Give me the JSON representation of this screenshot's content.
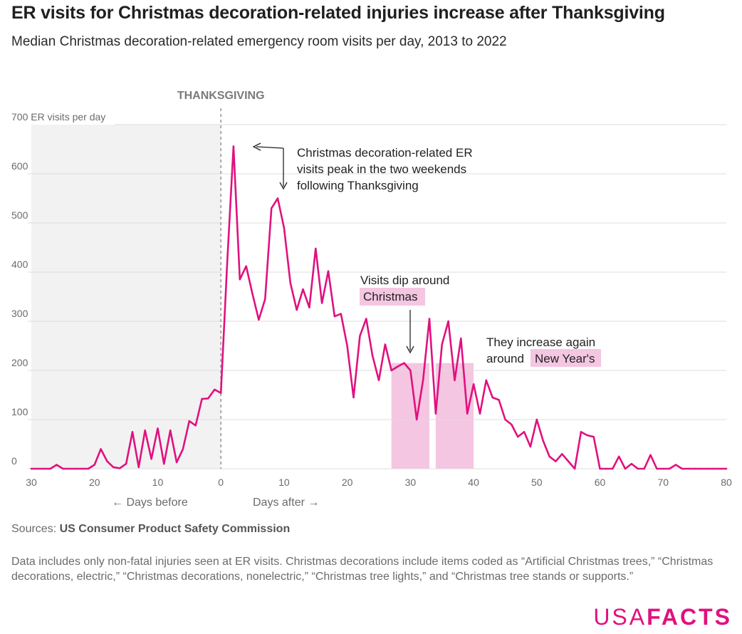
{
  "title": "ER visits for Christmas decoration-related injuries increase after Thanksgiving",
  "subtitle": "Median Christmas decoration-related emergency room visits per day, 2013 to 2022",
  "sources_label": "Sources:",
  "sources_value": "US Consumer Product Safety Commission",
  "note": "Data includes only non-fatal injuries seen at ER visits. Christmas decorations include items coded as “Artificial Christmas trees,” “Christmas decorations, electric,” “Christmas decorations, nonelectric,” “Christmas tree lights,” and “Christmas tree stands or supports.”",
  "logo": {
    "part1": "USA",
    "part2": "FACTS"
  },
  "colors": {
    "line": "#e0117f",
    "highlight": "#f4c6e1",
    "before_shade": "#f2f2f2",
    "grid": "#dcdcdc",
    "thanksgiving_line": "#aaaaaa"
  },
  "chart_data": {
    "type": "line",
    "xlim": [
      -30,
      80
    ],
    "ylim": [
      0,
      700
    ],
    "x_ticks": [
      -30,
      -20,
      -10,
      0,
      10,
      20,
      30,
      40,
      50,
      60,
      70,
      80
    ],
    "x_tick_labels": [
      "30",
      "20",
      "10",
      "0",
      "10",
      "20",
      "30",
      "40",
      "50",
      "60",
      "70",
      "80"
    ],
    "y_ticks": [
      0,
      100,
      200,
      300,
      400,
      500,
      600,
      700
    ],
    "y_tick_labels": [
      "0",
      "100",
      "200",
      "300",
      "400",
      "500",
      "600",
      "700 ER visits per day"
    ],
    "x_label_before": "← Days before",
    "x_label_after": "Days after →",
    "reference_line": {
      "x": 0,
      "label": "THANKSGIVING"
    },
    "shaded_before_range": [
      -30,
      0
    ],
    "highlight_ranges": [
      [
        27,
        33
      ],
      [
        34,
        40
      ]
    ],
    "annotations": [
      {
        "lines": [
          "Christmas decoration-related ER",
          "visits peak in the two weekends",
          "following Thanksgiving"
        ]
      },
      {
        "lines": [
          "Visits dip around",
          "Christmas"
        ]
      },
      {
        "lines": [
          "They increase again",
          "around",
          "New Year's"
        ]
      }
    ],
    "series": [
      {
        "name": "Median ER visits per day",
        "x": [
          -30,
          -29,
          -28,
          -27,
          -26,
          -25,
          -24,
          -23,
          -22,
          -21,
          -20,
          -19,
          -18,
          -17,
          -16,
          -15,
          -14,
          -13,
          -12,
          -11,
          -10,
          -9,
          -8,
          -7,
          -6,
          -5,
          -4,
          -3,
          -2,
          -1,
          0,
          1,
          2,
          3,
          4,
          5,
          6,
          7,
          8,
          9,
          10,
          11,
          12,
          13,
          14,
          15,
          16,
          17,
          18,
          19,
          20,
          21,
          22,
          23,
          24,
          25,
          26,
          27,
          28,
          29,
          30,
          31,
          32,
          33,
          34,
          35,
          36,
          37,
          38,
          39,
          40,
          41,
          42,
          43,
          44,
          45,
          46,
          47,
          48,
          49,
          50,
          51,
          52,
          53,
          54,
          55,
          56,
          57,
          58,
          59,
          60,
          61,
          62,
          63,
          64,
          65,
          66,
          67,
          68,
          69,
          70,
          71,
          72,
          73,
          74,
          75,
          76,
          77,
          78,
          79,
          80
        ],
        "values": [
          0,
          0,
          0,
          0,
          8,
          0,
          0,
          0,
          0,
          0,
          8,
          40,
          15,
          3,
          1,
          10,
          75,
          3,
          78,
          20,
          82,
          10,
          78,
          13,
          40,
          97,
          88,
          142,
          143,
          161,
          154,
          420,
          656,
          385,
          412,
          356,
          303,
          345,
          530,
          550,
          490,
          378,
          323,
          365,
          328,
          448,
          337,
          402,
          310,
          315,
          250,
          145,
          270,
          305,
          230,
          180,
          253,
          200,
          208,
          215,
          200,
          100,
          180,
          305,
          112,
          253,
          300,
          180,
          265,
          112,
          172,
          112,
          180,
          145,
          140,
          100,
          90,
          65,
          75,
          45,
          100,
          57,
          25,
          15,
          30,
          15,
          0,
          75,
          68,
          65,
          0,
          0,
          0,
          25,
          0,
          10,
          0,
          0,
          28,
          0,
          0,
          0,
          8,
          0,
          0,
          0,
          0,
          0,
          0,
          0,
          0
        ]
      }
    ]
  }
}
